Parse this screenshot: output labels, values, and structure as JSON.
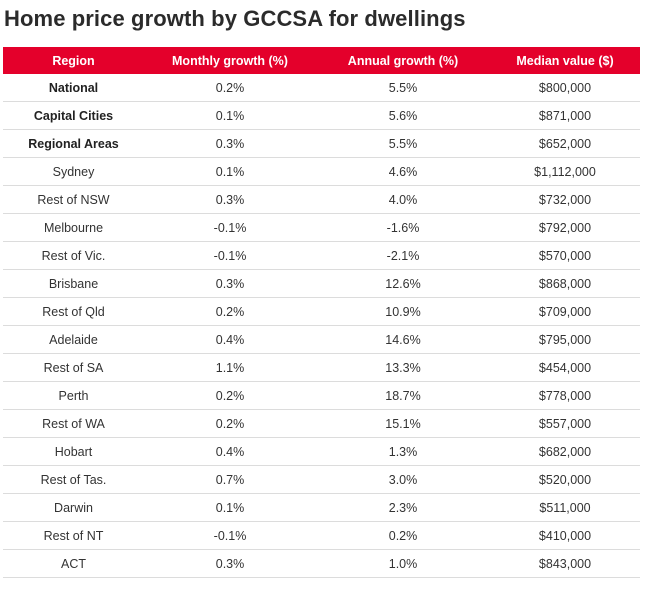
{
  "title": "Home price growth by GCCSA for dwellings",
  "colors": {
    "header_bg": "#e4002b",
    "header_text": "#ffffff"
  },
  "table": {
    "headers": [
      "Region",
      "Monthly growth (%)",
      "Annual growth (%)",
      "Median value ($)"
    ],
    "rows": [
      {
        "region": "National",
        "monthly": "0.2%",
        "annual": "5.5%",
        "median": "$800,000",
        "bold": true
      },
      {
        "region": "Capital Cities",
        "monthly": "0.1%",
        "annual": "5.6%",
        "median": "$871,000",
        "bold": true
      },
      {
        "region": "Regional Areas",
        "monthly": "0.3%",
        "annual": "5.5%",
        "median": "$652,000",
        "bold": true
      },
      {
        "region": "Sydney",
        "monthly": "0.1%",
        "annual": "4.6%",
        "median": "$1,112,000"
      },
      {
        "region": "Rest of NSW",
        "monthly": "0.3%",
        "annual": "4.0%",
        "median": "$732,000"
      },
      {
        "region": "Melbourne",
        "monthly": "-0.1%",
        "annual": "-1.6%",
        "median": "$792,000"
      },
      {
        "region": "Rest of Vic.",
        "monthly": "-0.1%",
        "annual": "-2.1%",
        "median": "$570,000"
      },
      {
        "region": "Brisbane",
        "monthly": "0.3%",
        "annual": "12.6%",
        "median": "$868,000"
      },
      {
        "region": "Rest of Qld",
        "monthly": "0.2%",
        "annual": "10.9%",
        "median": "$709,000"
      },
      {
        "region": "Adelaide",
        "monthly": "0.4%",
        "annual": "14.6%",
        "median": "$795,000"
      },
      {
        "region": "Rest of SA",
        "monthly": "1.1%",
        "annual": "13.3%",
        "median": "$454,000"
      },
      {
        "region": "Perth",
        "monthly": "0.2%",
        "annual": "18.7%",
        "median": "$778,000"
      },
      {
        "region": "Rest of WA",
        "monthly": "0.2%",
        "annual": "15.1%",
        "median": "$557,000"
      },
      {
        "region": "Hobart",
        "monthly": "0.4%",
        "annual": "1.3%",
        "median": "$682,000"
      },
      {
        "region": "Rest of Tas.",
        "monthly": "0.7%",
        "annual": "3.0%",
        "median": "$520,000"
      },
      {
        "region": "Darwin",
        "monthly": "0.1%",
        "annual": "2.3%",
        "median": "$511,000"
      },
      {
        "region": "Rest of NT",
        "monthly": "-0.1%",
        "annual": "0.2%",
        "median": "$410,000"
      },
      {
        "region": "ACT",
        "monthly": "0.3%",
        "annual": "1.0%",
        "median": "$843,000"
      }
    ]
  }
}
